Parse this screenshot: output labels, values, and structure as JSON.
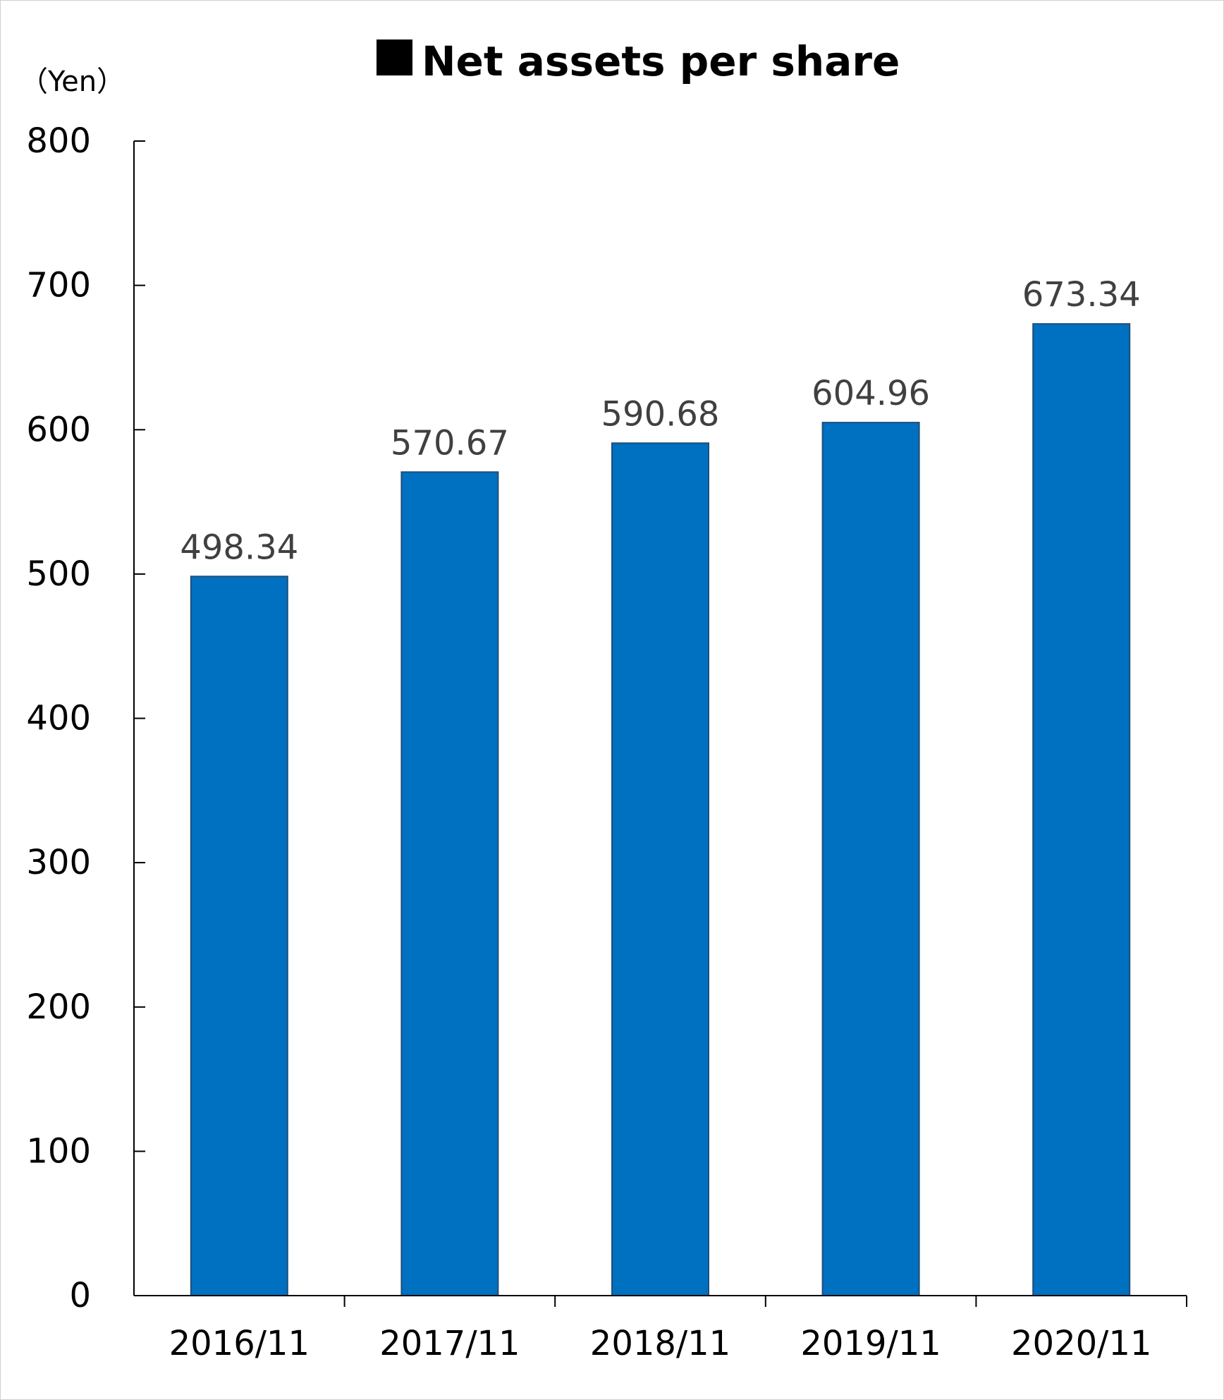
{
  "chart_data": {
    "type": "bar",
    "title": "Net assets per share",
    "title_marker": "square",
    "unit_label": "（Yen）",
    "xlabel": "",
    "ylabel": "",
    "categories": [
      "2016/11",
      "2017/11",
      "2018/11",
      "2019/11",
      "2020/11"
    ],
    "values": [
      498.34,
      570.67,
      590.68,
      604.96,
      673.34
    ],
    "value_labels": [
      "498.34",
      "570.67",
      "590.68",
      "604.96",
      "673.34"
    ],
    "ylim": [
      0,
      800
    ],
    "yticks": [
      0,
      100,
      200,
      300,
      400,
      500,
      600,
      700,
      800
    ],
    "grid": false,
    "legend": "none",
    "bar_color": "#0070C0",
    "bar_edge_color": "#1F4E79"
  }
}
